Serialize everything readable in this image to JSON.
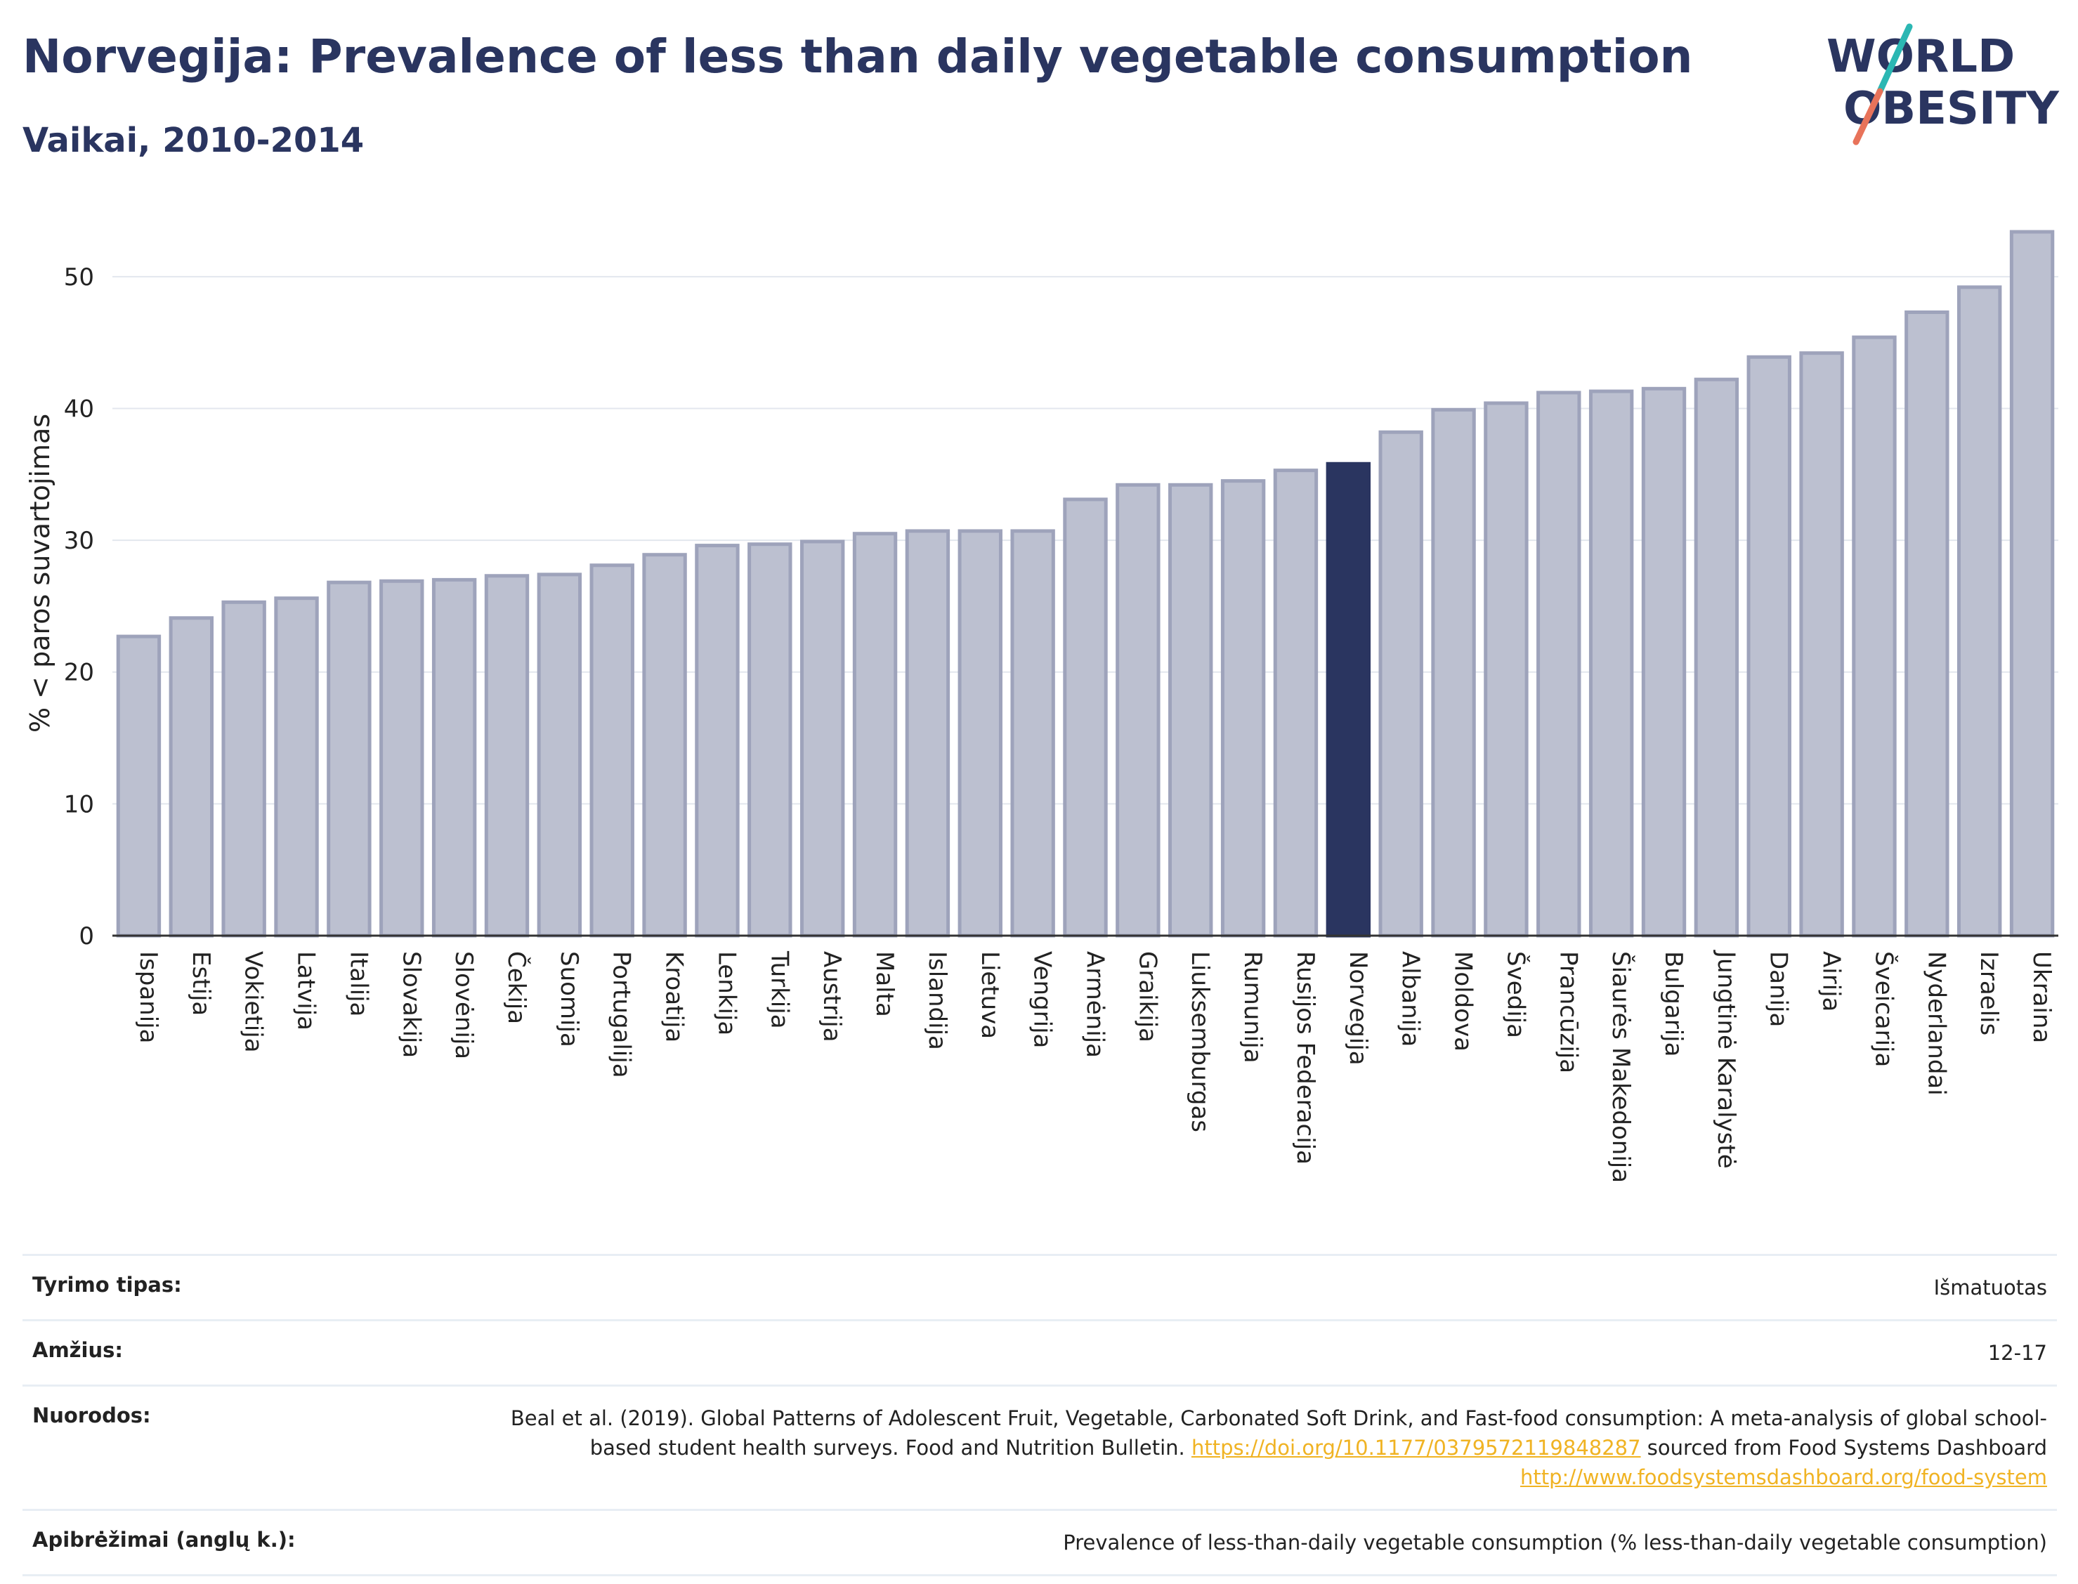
{
  "title": "Norvegija: Prevalence of less than daily vegetable consumption",
  "subtitle": "Vaikai, 2010-2014",
  "logo": {
    "line1": "WORLD",
    "line2": "OBESITY",
    "accent_colors": [
      "#2bb7b3",
      "#e8735a"
    ]
  },
  "colors": {
    "bar": "#bcc0d0",
    "bar_stroke": "#9ea3bb",
    "highlight": "#2a3560",
    "grid": "#e3e7ee",
    "axis": "#333333",
    "link": "#f0b323"
  },
  "chart_data": {
    "type": "bar",
    "ylabel": "% < paros suvartojimas",
    "ylim": [
      0,
      55
    ],
    "yticks": [
      0,
      10,
      20,
      30,
      40,
      50
    ],
    "grid": true,
    "highlight": "Norvegija",
    "categories": [
      "Ispanija",
      "Estija",
      "Vokietija",
      "Latvija",
      "Italija",
      "Slovakija",
      "Slovėnija",
      "Čekija",
      "Suomija",
      "Portugalija",
      "Kroatija",
      "Lenkija",
      "Turkija",
      "Austrija",
      "Malta",
      "Islandija",
      "Lietuva",
      "Vengrija",
      "Armėnija",
      "Graikija",
      "Liuksemburgas",
      "Rumunija",
      "Rusijos Federacija",
      "Norvegija",
      "Albanija",
      "Moldova",
      "Švedija",
      "Prancūzija",
      "Šiaurės Makedonija",
      "Bulgarija",
      "Jungtinė Karalystė",
      "Danija",
      "Airija",
      "Šveicarija",
      "Nyderlandai",
      "Izraelis",
      "Ukraina"
    ],
    "values": [
      22.7,
      24.1,
      25.3,
      25.6,
      26.8,
      26.9,
      27.0,
      27.3,
      27.4,
      28.1,
      28.9,
      29.6,
      29.7,
      29.9,
      30.5,
      30.7,
      30.7,
      30.7,
      33.1,
      34.2,
      34.2,
      34.5,
      35.3,
      35.8,
      38.2,
      39.9,
      40.4,
      41.2,
      41.3,
      41.5,
      42.2,
      43.9,
      44.2,
      45.4,
      47.3,
      49.2,
      53.4
    ]
  },
  "info": {
    "rows": [
      {
        "key": "Tyrimo tipas:",
        "value": "Išmatuotas"
      },
      {
        "key": "Amžius:",
        "value": "12-17"
      },
      {
        "key": "Nuorodos:",
        "value_parts": {
          "text1": "Beal et al. (2019). Global Patterns of Adolescent Fruit, Vegetable, Carbonated Soft Drink, and Fast-food consumption: A meta-analysis of global school-based student health surveys. Food and Nutrition Bulletin. ",
          "link1": "https://doi.org/10.1177/0379572119848287",
          "text2": " sourced from Food Systems Dashboard ",
          "link2": "http://www.foodsystemsdashboard.org/food-system"
        }
      },
      {
        "key": "Apibrėžimai (anglų k.):",
        "value": "Prevalence of less-than-daily vegetable consumption (% less-than-daily vegetable consumption)"
      }
    ]
  }
}
